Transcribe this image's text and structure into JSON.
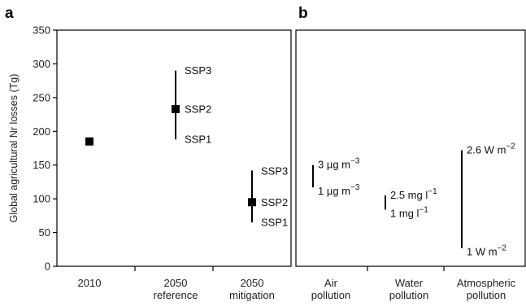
{
  "chart_data": [
    {
      "panel": "a",
      "type": "scatter",
      "ylabel": "Global agricultural Nr losses (Tg)",
      "ylim": [
        0,
        350
      ],
      "yticks": [
        0,
        50,
        100,
        150,
        200,
        250,
        300,
        350
      ],
      "categories": [
        [
          "2010"
        ],
        [
          "2050",
          "reference"
        ],
        [
          "2050",
          "mitigation"
        ]
      ],
      "points": [
        {
          "category": 0,
          "value": 185
        },
        {
          "category": 1,
          "value": 233,
          "range": [
            188,
            290
          ],
          "labels": [
            {
              "text": "SSP3",
              "value": 290
            },
            {
              "text": "SSP2",
              "value": 233
            },
            {
              "text": "SSP1",
              "value": 188
            }
          ]
        },
        {
          "category": 2,
          "value": 95,
          "range": [
            65,
            142
          ],
          "labels": [
            {
              "text": "SSP3",
              "value": 141
            },
            {
              "text": "SSP2",
              "value": 95
            },
            {
              "text": "SSP1",
              "value": 65
            }
          ]
        }
      ]
    },
    {
      "panel": "b",
      "type": "range",
      "categories": [
        [
          "Air",
          "pollution"
        ],
        [
          "Water",
          "pollution"
        ],
        [
          "Atmospheric",
          "pollution"
        ]
      ],
      "ranges": [
        {
          "category": 0,
          "low": 117,
          "high": 150,
          "high_label": {
            "base": "3 µg m",
            "sup": "−3"
          },
          "low_label": {
            "base": "1 µg m",
            "sup": "−3"
          }
        },
        {
          "category": 1,
          "low": 84,
          "high": 105,
          "high_label": {
            "base": "2.5 mg l",
            "sup": "−1"
          },
          "low_label": {
            "base": "1 mg l",
            "sup": "−1"
          }
        },
        {
          "category": 2,
          "low": 27,
          "high": 172,
          "high_label": {
            "base": "2.6 W m",
            "sup": "−2"
          },
          "low_label": {
            "base": "1 W m",
            "sup": "−2"
          }
        }
      ]
    }
  ]
}
